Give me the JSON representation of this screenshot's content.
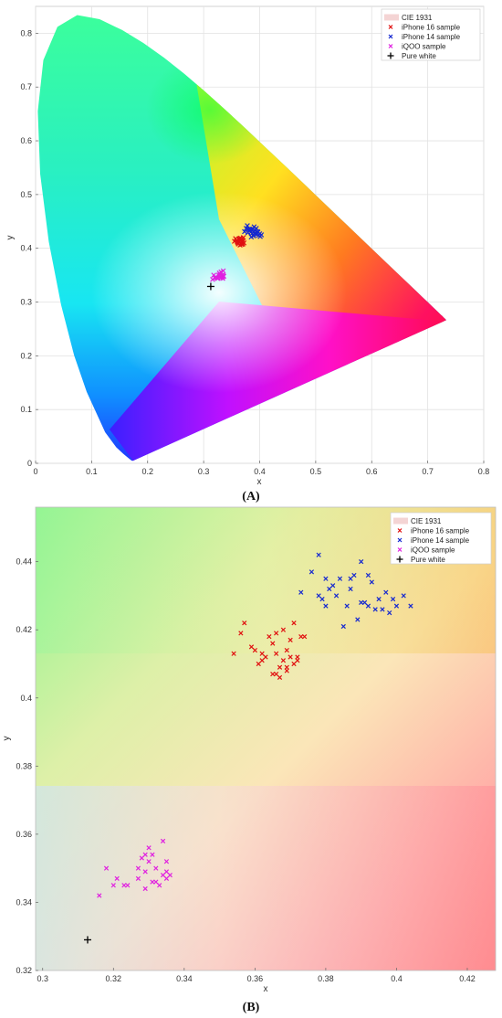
{
  "chart_data": [
    {
      "type": "scatter",
      "panel_label": "(A)",
      "xlabel": "x",
      "ylabel": "y",
      "xlim": [
        0,
        0.8
      ],
      "ylim": [
        0,
        0.85
      ],
      "xticks": [
        "0",
        "0.1",
        "0.2",
        "0.3",
        "0.4",
        "0.5",
        "0.6",
        "0.7",
        "0.8"
      ],
      "yticks": [
        "0",
        "0.1",
        "0.2",
        "0.3",
        "0.4",
        "0.5",
        "0.6",
        "0.7",
        "0.8"
      ],
      "grid": true,
      "legend_position": "top-right",
      "background": "CIE 1931 chromaticity diagram",
      "series": [
        {
          "name": "CIE 1931",
          "marker": "patch",
          "color": "#f4d4d4"
        },
        {
          "name": "iPhone 16 sample",
          "marker": "x",
          "color": "#e01010",
          "points": [
            [
              0.355,
              0.413
            ],
            [
              0.357,
              0.418
            ],
            [
              0.359,
              0.415
            ],
            [
              0.361,
              0.41
            ],
            [
              0.363,
              0.412
            ],
            [
              0.364,
              0.418
            ],
            [
              0.366,
              0.416
            ],
            [
              0.367,
              0.409
            ],
            [
              0.368,
              0.407
            ],
            [
              0.369,
              0.411
            ],
            [
              0.37,
              0.414
            ],
            [
              0.371,
              0.42
            ],
            [
              0.365,
              0.406
            ],
            [
              0.362,
              0.408
            ],
            [
              0.372,
              0.41
            ],
            [
              0.36,
              0.412
            ],
            [
              0.366,
              0.419
            ],
            [
              0.368,
              0.414
            ],
            [
              0.37,
              0.408
            ],
            [
              0.363,
              0.417
            ]
          ]
        },
        {
          "name": "iPhone 14 sample",
          "marker": "x",
          "color": "#1428d0",
          "points": [
            [
              0.373,
              0.431
            ],
            [
              0.376,
              0.437
            ],
            [
              0.378,
              0.442
            ],
            [
              0.38,
              0.435
            ],
            [
              0.382,
              0.433
            ],
            [
              0.384,
              0.43
            ],
            [
              0.386,
              0.435
            ],
            [
              0.388,
              0.436
            ],
            [
              0.39,
              0.44
            ],
            [
              0.391,
              0.428
            ],
            [
              0.393,
              0.427
            ],
            [
              0.395,
              0.426
            ],
            [
              0.397,
              0.43
            ],
            [
              0.4,
              0.427
            ],
            [
              0.403,
              0.425
            ],
            [
              0.385,
              0.421
            ],
            [
              0.387,
              0.428
            ],
            [
              0.389,
              0.423
            ],
            [
              0.392,
              0.433
            ],
            [
              0.394,
              0.437
            ],
            [
              0.396,
              0.431
            ],
            [
              0.379,
              0.429
            ],
            [
              0.383,
              0.435
            ],
            [
              0.398,
              0.424
            ],
            [
              0.401,
              0.422
            ]
          ]
        },
        {
          "name": "iQOO sample",
          "marker": "x",
          "color": "#e020e0",
          "points": [
            [
              0.316,
              0.342
            ],
            [
              0.318,
              0.35
            ],
            [
              0.32,
              0.345
            ],
            [
              0.322,
              0.346
            ],
            [
              0.324,
              0.345
            ],
            [
              0.325,
              0.344
            ],
            [
              0.327,
              0.35
            ],
            [
              0.329,
              0.352
            ],
            [
              0.33,
              0.348
            ],
            [
              0.331,
              0.356
            ],
            [
              0.332,
              0.346
            ],
            [
              0.333,
              0.35
            ],
            [
              0.334,
              0.347
            ],
            [
              0.335,
              0.358
            ],
            [
              0.335,
              0.349
            ],
            [
              0.336,
              0.348
            ],
            [
              0.33,
              0.345
            ],
            [
              0.328,
              0.354
            ],
            [
              0.334,
              0.344
            ],
            [
              0.321,
              0.346
            ]
          ]
        },
        {
          "name": "Pure white",
          "marker": "+",
          "color": "#000000",
          "points": [
            [
              0.3127,
              0.329
            ]
          ]
        }
      ]
    },
    {
      "type": "scatter",
      "panel_label": "(B)",
      "xlabel": "x",
      "ylabel": "y",
      "xlim": [
        0.298,
        0.428
      ],
      "ylim": [
        0.32,
        0.456
      ],
      "xticks": [
        "0.3",
        "0.32",
        "0.34",
        "0.36",
        "0.38",
        "0.4",
        "0.42"
      ],
      "yticks": [
        "0.32",
        "0.34",
        "0.36",
        "0.38",
        "0.4",
        "0.42",
        "0.44"
      ],
      "grid": false,
      "legend_position": "top-right",
      "background": "CIE 1931 chromaticity diagram (zoomed)",
      "series": [
        {
          "name": "CIE 1931",
          "marker": "patch",
          "color": "#f4d4d4"
        },
        {
          "name": "iPhone 16 sample",
          "marker": "x",
          "color": "#e01010",
          "points": [
            [
              0.354,
              0.413
            ],
            [
              0.356,
              0.419
            ],
            [
              0.357,
              0.422
            ],
            [
              0.359,
              0.415
            ],
            [
              0.361,
              0.41
            ],
            [
              0.362,
              0.413
            ],
            [
              0.363,
              0.412
            ],
            [
              0.364,
              0.418
            ],
            [
              0.365,
              0.407
            ],
            [
              0.365,
              0.416
            ],
            [
              0.366,
              0.419
            ],
            [
              0.366,
              0.413
            ],
            [
              0.367,
              0.409
            ],
            [
              0.367,
              0.406
            ],
            [
              0.368,
              0.411
            ],
            [
              0.368,
              0.42
            ],
            [
              0.369,
              0.414
            ],
            [
              0.369,
              0.408
            ],
            [
              0.37,
              0.412
            ],
            [
              0.37,
              0.417
            ],
            [
              0.371,
              0.41
            ],
            [
              0.371,
              0.422
            ],
            [
              0.372,
              0.411
            ],
            [
              0.373,
              0.418
            ],
            [
              0.374,
              0.418
            ],
            [
              0.362,
              0.411
            ],
            [
              0.366,
              0.407
            ],
            [
              0.369,
              0.409
            ],
            [
              0.372,
              0.412
            ],
            [
              0.36,
              0.414
            ]
          ]
        },
        {
          "name": "iPhone 14 sample",
          "marker": "x",
          "color": "#1428d0",
          "points": [
            [
              0.373,
              0.431
            ],
            [
              0.376,
              0.437
            ],
            [
              0.378,
              0.442
            ],
            [
              0.379,
              0.429
            ],
            [
              0.38,
              0.435
            ],
            [
              0.381,
              0.432
            ],
            [
              0.382,
              0.433
            ],
            [
              0.383,
              0.43
            ],
            [
              0.384,
              0.435
            ],
            [
              0.385,
              0.421
            ],
            [
              0.386,
              0.427
            ],
            [
              0.387,
              0.435
            ],
            [
              0.388,
              0.436
            ],
            [
              0.389,
              0.423
            ],
            [
              0.39,
              0.44
            ],
            [
              0.39,
              0.428
            ],
            [
              0.391,
              0.428
            ],
            [
              0.392,
              0.427
            ],
            [
              0.392,
              0.436
            ],
            [
              0.393,
              0.434
            ],
            [
              0.394,
              0.426
            ],
            [
              0.395,
              0.429
            ],
            [
              0.396,
              0.426
            ],
            [
              0.397,
              0.431
            ],
            [
              0.398,
              0.425
            ],
            [
              0.399,
              0.429
            ],
            [
              0.4,
              0.427
            ],
            [
              0.402,
              0.43
            ],
            [
              0.404,
              0.427
            ],
            [
              0.378,
              0.43
            ],
            [
              0.38,
              0.427
            ],
            [
              0.387,
              0.432
            ]
          ]
        },
        {
          "name": "iQOO sample",
          "marker": "x",
          "color": "#e020e0",
          "points": [
            [
              0.316,
              0.342
            ],
            [
              0.318,
              0.35
            ],
            [
              0.32,
              0.345
            ],
            [
              0.321,
              0.347
            ],
            [
              0.323,
              0.345
            ],
            [
              0.324,
              0.345
            ],
            [
              0.327,
              0.35
            ],
            [
              0.328,
              0.353
            ],
            [
              0.329,
              0.344
            ],
            [
              0.329,
              0.349
            ],
            [
              0.33,
              0.356
            ],
            [
              0.33,
              0.352
            ],
            [
              0.331,
              0.346
            ],
            [
              0.331,
              0.354
            ],
            [
              0.332,
              0.35
            ],
            [
              0.333,
              0.345
            ],
            [
              0.334,
              0.348
            ],
            [
              0.334,
              0.358
            ],
            [
              0.335,
              0.347
            ],
            [
              0.335,
              0.352
            ],
            [
              0.335,
              0.349
            ],
            [
              0.336,
              0.348
            ],
            [
              0.329,
              0.354
            ],
            [
              0.327,
              0.347
            ],
            [
              0.332,
              0.346
            ]
          ]
        },
        {
          "name": "Pure white",
          "marker": "+",
          "color": "#000000",
          "points": [
            [
              0.3127,
              0.329
            ]
          ]
        }
      ]
    }
  ]
}
